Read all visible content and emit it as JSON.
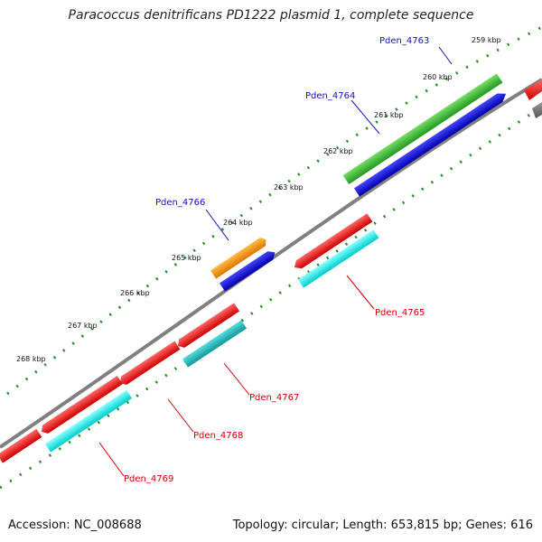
{
  "title": "Paracoccus denitrificans PD1222 plasmid 1, complete sequence",
  "footer": {
    "accession": "Accession: NC_008688",
    "stats": "Topology: circular; Length: 653,815 bp; Genes: 616"
  },
  "kbp_labels": [
    "259 kbp",
    "260 kbp",
    "261 kbp",
    "262 kbp",
    "263 kbp",
    "264 kbp",
    "265 kbp",
    "266 kbp",
    "267 kbp",
    "268 kbp"
  ],
  "gene_labels": [
    {
      "text": "Pden_4763",
      "strand": "forward",
      "color": "#1010cc"
    },
    {
      "text": "Pden_4764",
      "strand": "forward",
      "color": "#1010cc"
    },
    {
      "text": "Pden_4766",
      "strand": "forward",
      "color": "#1010cc"
    },
    {
      "text": "Pden_4765",
      "strand": "reverse",
      "color": "#cc0000"
    },
    {
      "text": "Pden_4767",
      "strand": "reverse",
      "color": "#cc0000"
    },
    {
      "text": "Pden_4768",
      "strand": "reverse",
      "color": "#cc0000"
    },
    {
      "text": "Pden_4769",
      "strand": "reverse",
      "color": "#cc0000"
    }
  ],
  "colors": {
    "backbone": "#808080",
    "tick": "#228b22",
    "forward_label": "#1010cc",
    "reverse_label": "#cc0000",
    "cds_red": "#ee1111",
    "cds_blue": "#1111dd",
    "cds_green": "#33bb33",
    "cds_orange": "#ff8c00",
    "cds_cyan": "#11dddd",
    "cds_teal": "#22bbbb",
    "cds_grey": "#777777"
  }
}
